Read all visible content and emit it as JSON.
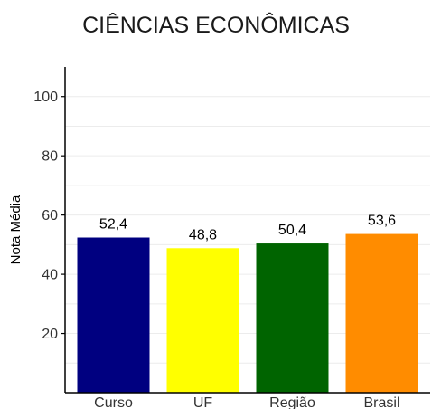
{
  "chart_data": {
    "type": "bar",
    "title": "CIÊNCIAS ECONÔMICAS",
    "ylabel": "Nota Média",
    "xlabel": "",
    "ylim": [
      0,
      110
    ],
    "yticks": [
      20,
      40,
      60,
      80,
      100
    ],
    "grid": true,
    "legend": "none",
    "categories": [
      "Curso",
      "UF",
      "Região",
      "Brasil"
    ],
    "values": [
      52.4,
      48.8,
      50.4,
      53.6
    ],
    "value_labels": [
      "52,4",
      "48,8",
      "50,4",
      "53,6"
    ],
    "colors": [
      "#000080",
      "#ffff00",
      "#006400",
      "#ff8c00"
    ]
  }
}
